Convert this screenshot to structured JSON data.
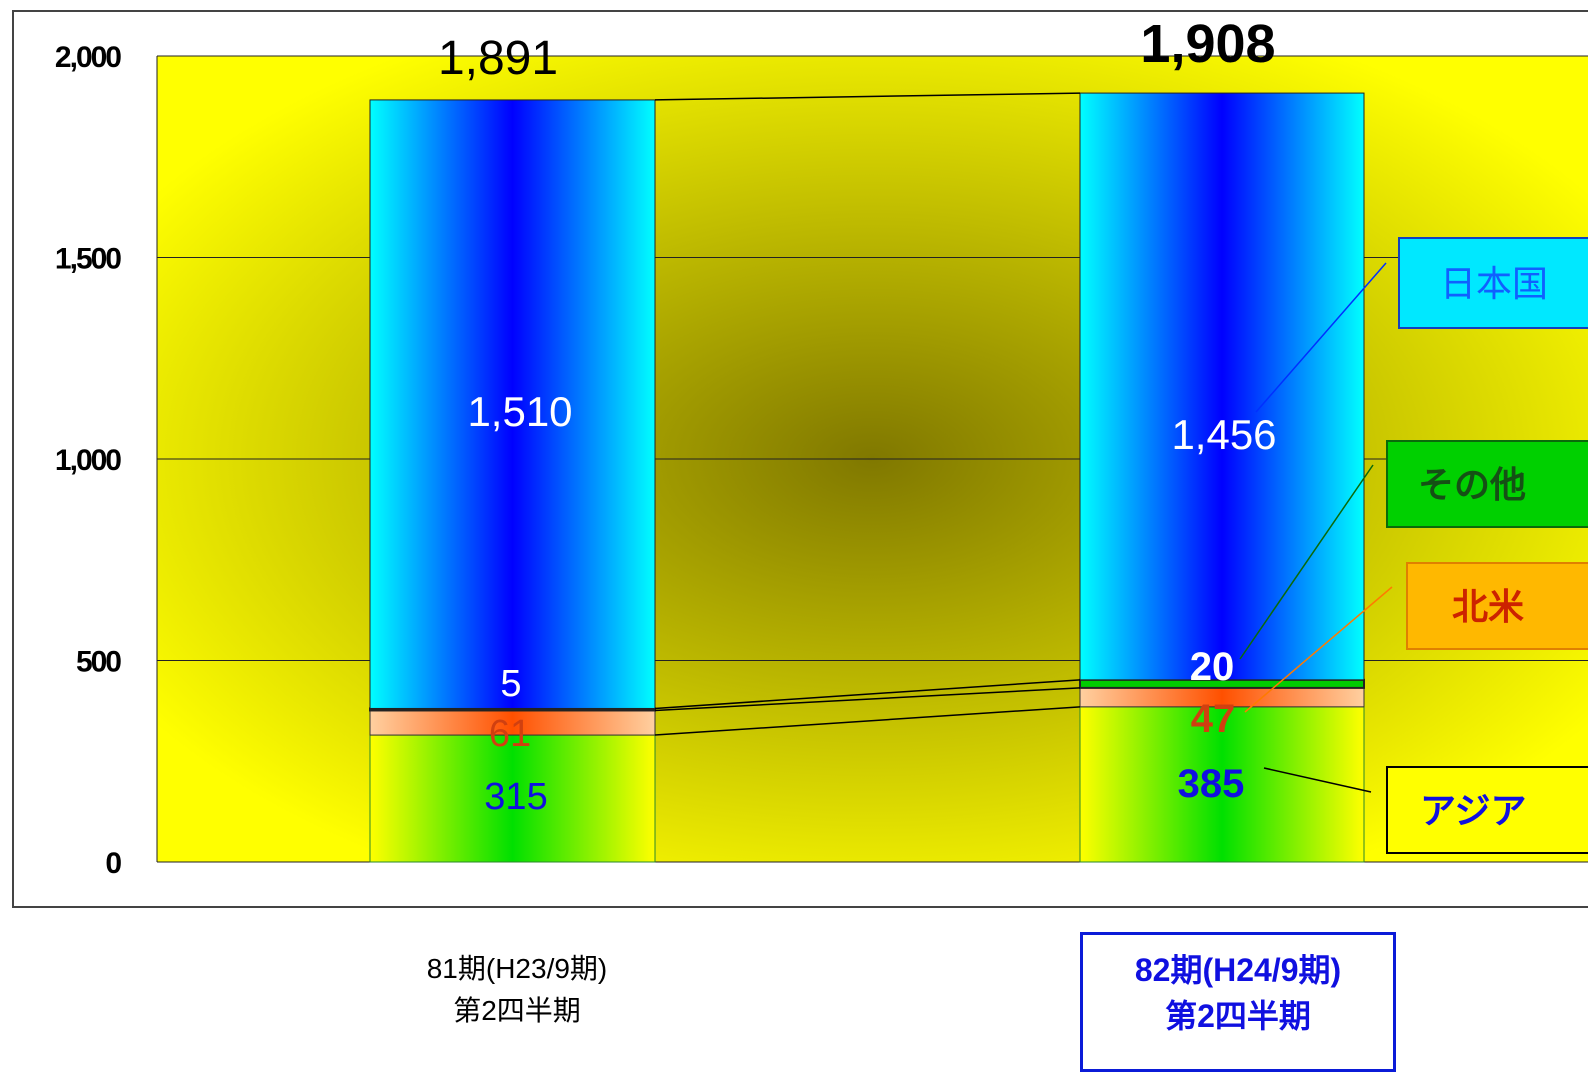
{
  "chart_data": {
    "type": "bar",
    "stacked": true,
    "categories": [
      "81期(H23/9期)\n第2四半期",
      "82期(H24/9期)\n第2四半期"
    ],
    "category_lines": [
      [
        "81期(H23/9期)",
        "第2四半期"
      ],
      [
        "82期(H24/9期)",
        "第2四半期"
      ]
    ],
    "series": [
      {
        "name": "アジア",
        "values": [
          315,
          385
        ],
        "value_labels": [
          "315",
          "385"
        ]
      },
      {
        "name": "北米",
        "values": [
          61,
          47
        ],
        "value_labels": [
          "61",
          "47"
        ]
      },
      {
        "name": "その他",
        "values": [
          5,
          20
        ],
        "value_labels": [
          "5",
          "20"
        ]
      },
      {
        "name": "日本国内",
        "values": [
          1510,
          1456
        ],
        "value_labels": [
          "1,510",
          "1,456"
        ]
      }
    ],
    "totals": [
      1891,
      1908
    ],
    "total_labels": [
      "1,891",
      "1,908"
    ],
    "y_ticks": [
      0,
      500,
      1000,
      1500,
      2000
    ],
    "y_tick_labels": [
      "0",
      "500",
      "1,000",
      "1,500",
      "2,000"
    ],
    "ylim": [
      0,
      2000
    ],
    "grid": true,
    "legend": "right, callout boxes (partially cut off)",
    "legend_labels": [
      "日本国内",
      "その他",
      "北米",
      "アジア"
    ],
    "legend_visible_text": [
      "日本国",
      "その他",
      "北米",
      "アジア"
    ],
    "title": "",
    "xlabel": "",
    "ylabel": "",
    "colors": {
      "plot_background": "#ffff00",
      "plot_center": "#807800",
      "domestic_edge": "#00ffff",
      "domestic_center": "#0000ff",
      "asia_edge": "#ffff00",
      "asia_center": "#00e000",
      "north_america_light": "#ffd0a0",
      "north_america_dark": "#ff5000",
      "other": "#00cc00",
      "label_domestic_box": "#00e8ff",
      "label_other_box": "#00d000",
      "label_na_box": "#ffb800",
      "label_na_text": "#cc2200",
      "label_asia_text": "#1010e0",
      "label_domestic_text": "#1060ff",
      "highlight_text": "#1010e0"
    }
  }
}
